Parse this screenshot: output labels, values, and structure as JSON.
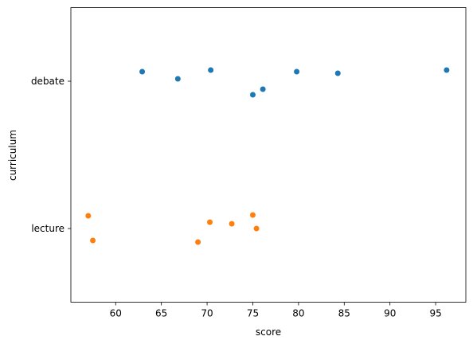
{
  "chart_data": {
    "type": "strip",
    "xlabel": "score",
    "ylabel": "curriculum",
    "xlim": [
      55.1,
      98.3
    ],
    "xticks": [
      60,
      65,
      70,
      75,
      80,
      85,
      90,
      95
    ],
    "series": [
      {
        "name": "debate",
        "color": "#1f77b4",
        "values": [
          62.9,
          66.8,
          70.4,
          75.0,
          76.1,
          79.8,
          84.3,
          96.2
        ]
      },
      {
        "name": "lecture",
        "color": "#ff7f0e",
        "values": [
          57.0,
          57.5,
          69.0,
          70.3,
          72.7,
          75.0,
          75.4
        ]
      }
    ]
  }
}
